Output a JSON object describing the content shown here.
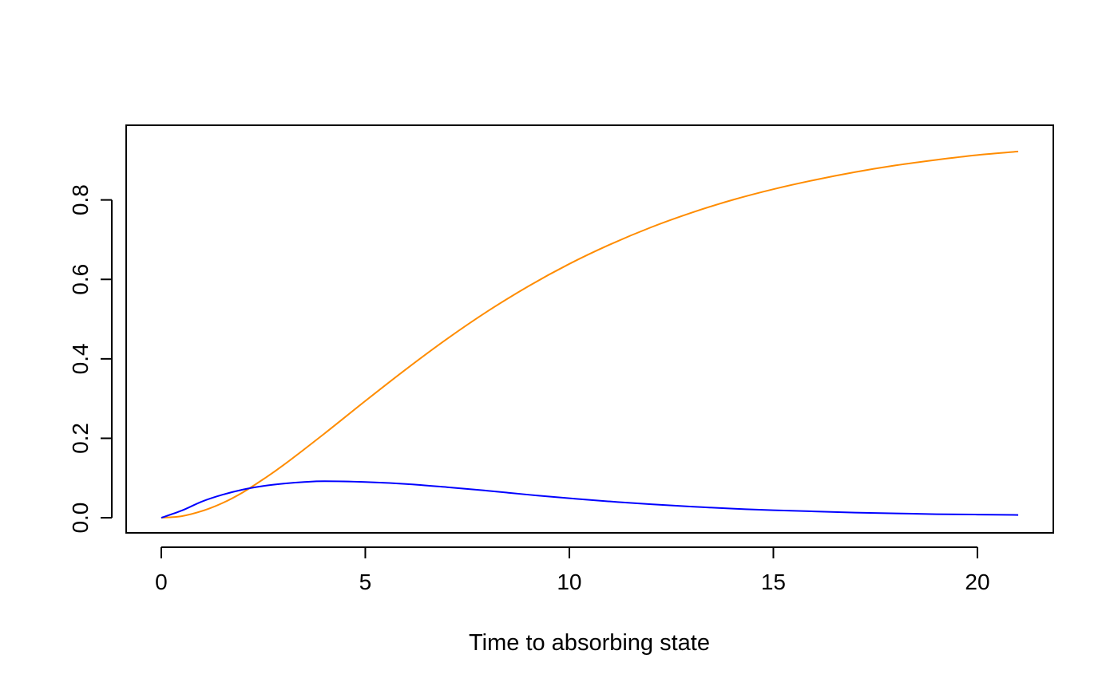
{
  "chart_data": {
    "type": "line",
    "title": "",
    "xlabel": "Time to absorbing state",
    "ylabel": "",
    "xlim": [
      -0.86,
      21.86
    ],
    "ylim": [
      -0.038,
      0.988
    ],
    "x_ticks": [
      0,
      5,
      10,
      15,
      20
    ],
    "x_tick_labels": [
      "0",
      "5",
      "10",
      "15",
      "20"
    ],
    "y_ticks": [
      0.0,
      0.2,
      0.4,
      0.6,
      0.8
    ],
    "y_tick_labels": [
      "0.0",
      "0.2",
      "0.4",
      "0.6",
      "0.8"
    ],
    "grid": false,
    "legend": "none",
    "series": [
      {
        "color": "#FF8C00",
        "x": [
          0,
          0.5,
          1,
          1.5,
          2,
          2.5,
          3,
          4,
          5,
          6,
          7,
          8,
          9,
          10,
          11,
          12,
          13,
          14,
          15,
          16,
          17,
          18,
          19,
          20,
          21
        ],
        "y": [
          0.0,
          0.004,
          0.017,
          0.037,
          0.064,
          0.097,
          0.133,
          0.212,
          0.294,
          0.374,
          0.45,
          0.52,
          0.583,
          0.639,
          0.688,
          0.731,
          0.768,
          0.8,
          0.827,
          0.85,
          0.87,
          0.887,
          0.901,
          0.913,
          0.922
        ]
      },
      {
        "color": "#0000FF",
        "x": [
          0,
          0.5,
          1,
          1.5,
          2,
          2.5,
          3,
          3.5,
          4,
          5,
          6,
          7,
          8,
          9,
          10,
          11,
          12,
          13,
          14,
          15,
          16,
          17,
          18,
          19,
          20,
          21
        ],
        "y": [
          0.0,
          0.018,
          0.041,
          0.058,
          0.071,
          0.08,
          0.086,
          0.09,
          0.092,
          0.09,
          0.085,
          0.077,
          0.068,
          0.058,
          0.049,
          0.041,
          0.034,
          0.028,
          0.023,
          0.019,
          0.016,
          0.013,
          0.011,
          0.009,
          0.008,
          0.007
        ]
      }
    ]
  }
}
